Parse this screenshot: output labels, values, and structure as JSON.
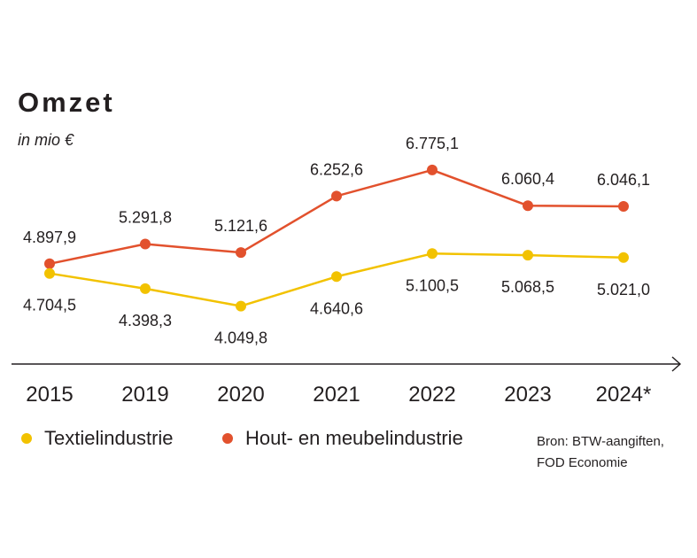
{
  "header": {
    "title": "Omzet",
    "subtitle": "in mio €"
  },
  "legend": {
    "textile_label": "Textielindustrie",
    "wood_label": "Hout- en meubelindustrie"
  },
  "source": {
    "line1": "Bron: BTW-aangiften,",
    "line2": "FOD Economie"
  },
  "colors": {
    "textile": "#f2c200",
    "wood": "#e2512d",
    "axis": "#231f20",
    "text": "#231f20"
  },
  "chart_data": {
    "type": "line",
    "categories": [
      "2015",
      "2019",
      "2020",
      "2021",
      "2022",
      "2023",
      "2024*"
    ],
    "series": [
      {
        "key": "wood",
        "name": "Hout- en meubelindustrie",
        "values": [
          4897.9,
          5291.8,
          5121.6,
          6252.6,
          6775.1,
          6060.4,
          6046.1
        ],
        "labels": [
          "4.897,9",
          "5.291,8",
          "5.121,6",
          "6.252,6",
          "6.775,1",
          "6.060,4",
          "6.046,1"
        ],
        "label_position": "above"
      },
      {
        "key": "textile",
        "name": "Textielindustrie",
        "values": [
          4704.5,
          4398.3,
          4049.8,
          4640.6,
          5100.5,
          5068.5,
          5021.0
        ],
        "labels": [
          "4.704,5",
          "4.398,3",
          "4.049,8",
          "4.640,6",
          "5.100,5",
          "5.068,5",
          "5.021,0"
        ],
        "label_position": "below"
      }
    ],
    "title": "Omzet",
    "ylabel": "in mio €",
    "ylim": [
      2500,
      7500
    ],
    "grid": false,
    "legend_position": "bottom-left"
  }
}
